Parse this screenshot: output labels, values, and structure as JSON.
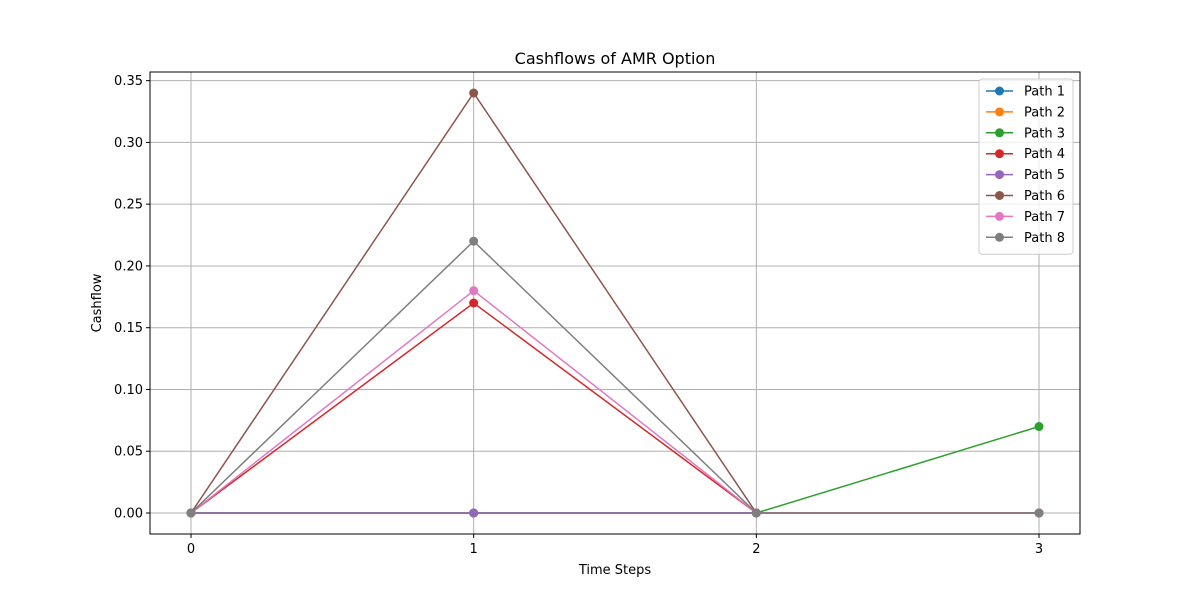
{
  "chart_data": {
    "type": "line",
    "title": "Cashflows of AMR Option",
    "xlabel": "Time Steps",
    "ylabel": "Cashflow",
    "x": [
      0,
      1,
      2,
      3
    ],
    "xlim": [
      -0.145,
      3.145
    ],
    "ylim": [
      -0.017,
      0.357
    ],
    "xticks": [
      0,
      1,
      2,
      3
    ],
    "xtick_labels": [
      "0",
      "1",
      "2",
      "3"
    ],
    "yticks": [
      0,
      0.05,
      0.1,
      0.15,
      0.2,
      0.25,
      0.3,
      0.35
    ],
    "ytick_labels": [
      "0.00",
      "0.05",
      "0.10",
      "0.15",
      "0.20",
      "0.25",
      "0.30",
      "0.35"
    ],
    "grid": true,
    "legend_position": "top-right",
    "series": [
      {
        "name": "Path 1",
        "color": "#1f77b4",
        "values": [
          0,
          0,
          0,
          0
        ]
      },
      {
        "name": "Path 2",
        "color": "#ff7f0e",
        "values": [
          0,
          0,
          0,
          0
        ]
      },
      {
        "name": "Path 3",
        "color": "#2ca02c",
        "values": [
          0,
          0,
          0,
          0.07
        ]
      },
      {
        "name": "Path 4",
        "color": "#d62728",
        "values": [
          0,
          0.17,
          0,
          0
        ]
      },
      {
        "name": "Path 5",
        "color": "#9467bd",
        "values": [
          0,
          0,
          0,
          0
        ]
      },
      {
        "name": "Path 6",
        "color": "#8c564b",
        "values": [
          0,
          0.34,
          0,
          0
        ]
      },
      {
        "name": "Path 7",
        "color": "#e377c2",
        "values": [
          0,
          0.18,
          0,
          0
        ]
      },
      {
        "name": "Path 8",
        "color": "#7f7f7f",
        "values": [
          0,
          0.22,
          0,
          0
        ]
      }
    ]
  }
}
